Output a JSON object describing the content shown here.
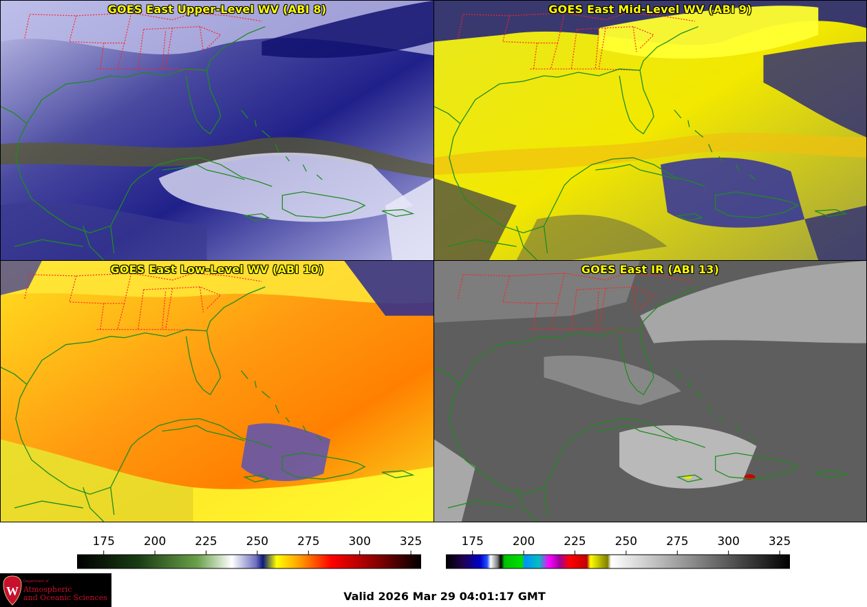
{
  "panels": {
    "top_left": {
      "title": "GOES East Upper-Level WV (ABI 8)"
    },
    "top_right": {
      "title": "GOES East Mid-Level WV (ABI 9)"
    },
    "bottom_left": {
      "title": "GOES East Low-Level WV (ABI 10)"
    },
    "bottom_right": {
      "title": "GOES East IR (ABI 13)"
    }
  },
  "colorbars": {
    "wv": {
      "ticks": [
        "175",
        "200",
        "225",
        "250",
        "275",
        "300",
        "325"
      ],
      "range": [
        162,
        330
      ],
      "tick_values": [
        175,
        200,
        225,
        250,
        275,
        300,
        325
      ]
    },
    "ir": {
      "ticks": [
        "175",
        "200",
        "225",
        "250",
        "275",
        "300",
        "325"
      ],
      "range": [
        162,
        330
      ],
      "tick_values": [
        175,
        200,
        225,
        250,
        275,
        300,
        325
      ]
    }
  },
  "logo": {
    "department": "Department of",
    "line1": "Atmospheric",
    "line2": "and Oceanic Sciences",
    "crest_letter": "W"
  },
  "footer": {
    "valid_text": "Valid 2026 Mar 29 04:01:17 GMT"
  },
  "colors": {
    "title_text": "#ffff00",
    "state_borders": "#ff2020",
    "coastlines": "#1e8c1e"
  }
}
